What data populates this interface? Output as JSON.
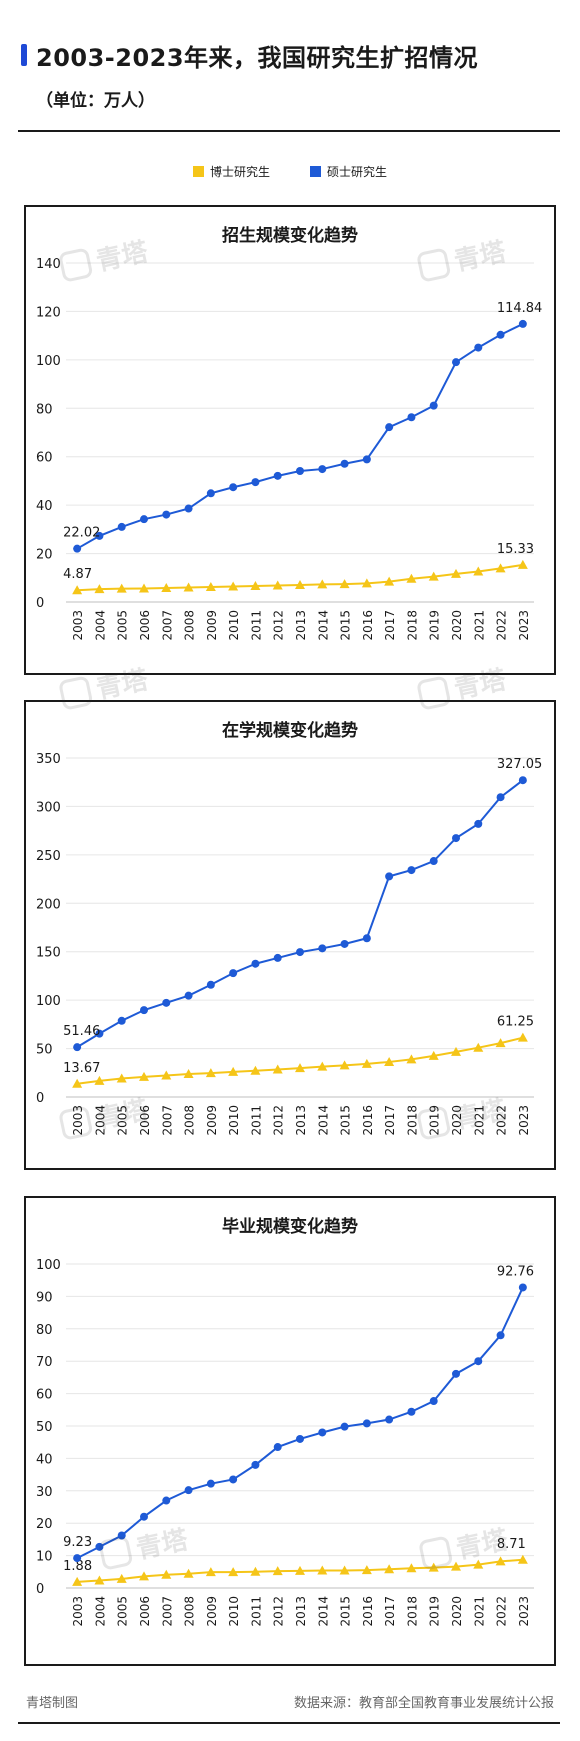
{
  "header": {
    "title": "2003-2023年来，我国研究生扩招情况",
    "subtitle": "（单位：万人）"
  },
  "legend": [
    {
      "label": "博士研究生",
      "color": "#f5c518"
    },
    {
      "label": "硕士研究生",
      "color": "#1e5ad6"
    }
  ],
  "watermark": {
    "text": "青塔"
  },
  "footer": {
    "left": "青塔制图",
    "right": "数据来源：教育部全国教育事业发展统计公报"
  },
  "chart_data": [
    {
      "type": "line",
      "title": "招生规模变化趋势",
      "x": [
        "2003",
        "2004",
        "2005",
        "2006",
        "2007",
        "2008",
        "2009",
        "2010",
        "2011",
        "2012",
        "2013",
        "2014",
        "2015",
        "2016",
        "2017",
        "2018",
        "2019",
        "2020",
        "2021",
        "2022",
        "2023"
      ],
      "ylim": [
        0,
        140
      ],
      "yticks": [
        0,
        20,
        40,
        60,
        80,
        100,
        120,
        140
      ],
      "series": [
        {
          "name": "硕士研究生",
          "color": "#1e5ad6",
          "marker": "circle",
          "values": [
            22.02,
            27.3,
            31.0,
            34.2,
            36.1,
            38.6,
            44.9,
            47.4,
            49.5,
            52.1,
            54.1,
            54.9,
            57.1,
            58.9,
            72.2,
            76.3,
            81.1,
            99.05,
            105.07,
            110.35,
            114.84
          ],
          "labels": {
            "0": "22.02",
            "20": "114.84"
          }
        },
        {
          "name": "博士研究生",
          "color": "#f5c518",
          "marker": "triangle",
          "values": [
            4.87,
            5.3,
            5.5,
            5.6,
            5.8,
            6.0,
            6.2,
            6.4,
            6.6,
            6.8,
            7.0,
            7.3,
            7.4,
            7.7,
            8.4,
            9.6,
            10.5,
            11.6,
            12.6,
            13.9,
            15.33
          ],
          "labels": {
            "0": "4.87",
            "20": "15.33"
          }
        }
      ]
    },
    {
      "type": "line",
      "title": "在学规模变化趋势",
      "x": [
        "2003",
        "2004",
        "2005",
        "2006",
        "2007",
        "2008",
        "2009",
        "2010",
        "2011",
        "2012",
        "2013",
        "2014",
        "2015",
        "2016",
        "2017",
        "2018",
        "2019",
        "2020",
        "2021",
        "2022",
        "2023"
      ],
      "ylim": [
        0,
        350
      ],
      "yticks": [
        0,
        50,
        100,
        150,
        200,
        250,
        300,
        350
      ],
      "series": [
        {
          "name": "硕士研究生",
          "color": "#1e5ad6",
          "marker": "circle",
          "values": [
            51.46,
            65.4,
            78.7,
            89.7,
            97.2,
            104.6,
            115.9,
            127.9,
            137.6,
            143.6,
            149.6,
            153.5,
            158.0,
            163.9,
            227.8,
            234.3,
            243.6,
            267.3,
            282.0,
            309.5,
            327.05
          ],
          "labels": {
            "0": "51.46",
            "20": "327.05"
          }
        },
        {
          "name": "博士研究生",
          "color": "#f5c518",
          "marker": "triangle",
          "values": [
            13.67,
            16.6,
            19.1,
            20.8,
            22.2,
            23.7,
            24.6,
            25.9,
            27.1,
            28.4,
            29.8,
            31.3,
            32.7,
            34.2,
            36.2,
            38.9,
            42.5,
            46.6,
            50.9,
            55.6,
            61.25
          ],
          "labels": {
            "0": "13.67",
            "20": "61.25"
          }
        }
      ]
    },
    {
      "type": "line",
      "title": "毕业规模变化趋势",
      "x": [
        "2003",
        "2004",
        "2005",
        "2006",
        "2007",
        "2008",
        "2009",
        "2010",
        "2011",
        "2012",
        "2013",
        "2014",
        "2015",
        "2016",
        "2017",
        "2018",
        "2019",
        "2020",
        "2021",
        "2022",
        "2023"
      ],
      "ylim": [
        0,
        100
      ],
      "yticks": [
        0,
        10,
        20,
        30,
        40,
        50,
        60,
        70,
        80,
        90,
        100
      ],
      "series": [
        {
          "name": "硕士研究生",
          "color": "#1e5ad6",
          "marker": "circle",
          "values": [
            9.23,
            12.7,
            16.2,
            22.0,
            27.0,
            30.2,
            32.2,
            33.5,
            38.0,
            43.5,
            46.0,
            48.0,
            49.8,
            50.8,
            52.0,
            54.4,
            57.7,
            66.1,
            70.0,
            78.0,
            92.76
          ],
          "labels": {
            "0": "9.23",
            "20": "92.76"
          }
        },
        {
          "name": "博士研究生",
          "color": "#f5c518",
          "marker": "triangle",
          "values": [
            1.88,
            2.3,
            2.8,
            3.6,
            4.1,
            4.4,
            4.9,
            4.9,
            5.0,
            5.2,
            5.3,
            5.4,
            5.4,
            5.5,
            5.8,
            6.1,
            6.3,
            6.6,
            7.2,
            8.2,
            8.71
          ],
          "labels": {
            "0": "1.88",
            "20": "8.71"
          }
        }
      ]
    }
  ]
}
